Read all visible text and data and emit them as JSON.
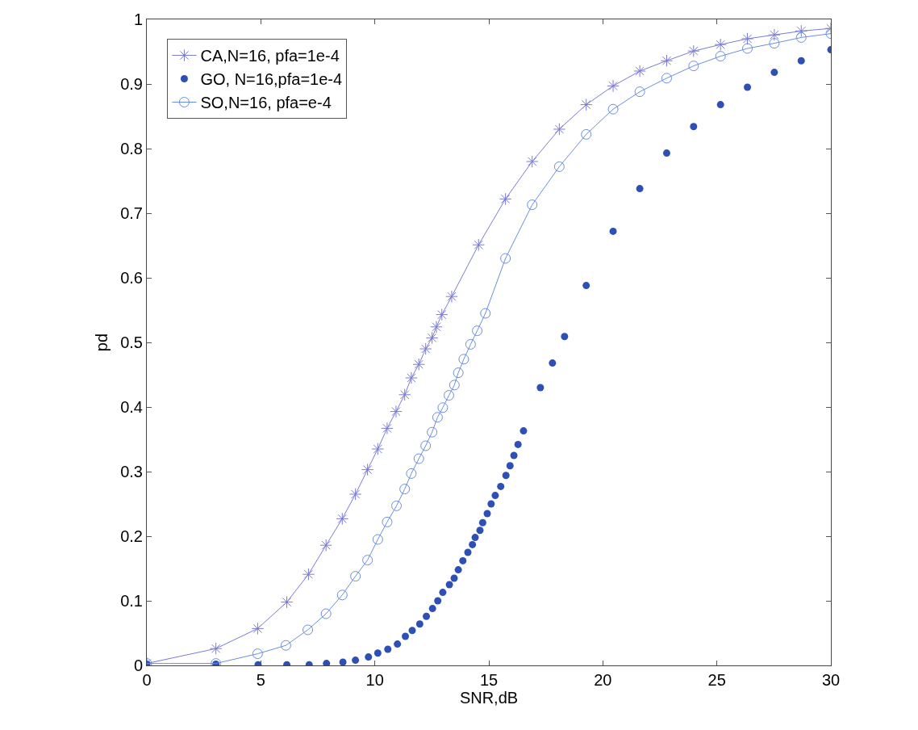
{
  "chart_data": {
    "type": "line",
    "xlabel": "SNR,dB",
    "ylabel": "pd",
    "xlim": [
      0,
      30
    ],
    "ylim": [
      0,
      1
    ],
    "xticks": [
      0,
      5,
      10,
      15,
      20,
      25,
      30
    ],
    "yticks": [
      0,
      0.1,
      0.2,
      0.3,
      0.4,
      0.5,
      0.6,
      0.7,
      0.8,
      0.9,
      1
    ],
    "grid": false,
    "legend": "top left",
    "series": [
      {
        "name": "CA,N=16, pfa=1e-4",
        "marker": "cross",
        "line_style": "solid",
        "color": "#7a7ad8",
        "x": [
          0,
          3.03,
          4.86,
          6.14,
          7.09,
          7.86,
          8.57,
          9.15,
          9.68,
          10.13,
          10.54,
          10.93,
          11.31,
          11.6,
          11.93,
          12.23,
          12.51,
          12.7,
          12.94,
          13.37,
          14.55,
          15.73,
          16.9,
          18.09,
          19.27,
          20.45,
          21.62,
          22.8,
          23.98,
          25.16,
          26.34,
          27.52,
          28.7,
          30
        ],
        "values": [
          0.003,
          0.026,
          0.057,
          0.098,
          0.141,
          0.186,
          0.227,
          0.265,
          0.303,
          0.335,
          0.367,
          0.393,
          0.419,
          0.445,
          0.466,
          0.49,
          0.507,
          0.524,
          0.543,
          0.571,
          0.651,
          0.722,
          0.78,
          0.83,
          0.868,
          0.897,
          0.92,
          0.936,
          0.951,
          0.961,
          0.97,
          0.976,
          0.982,
          0.986
        ]
      },
      {
        "name": "GO, N=16,pfa=1e-4",
        "type": "scatter",
        "marker": "circle",
        "color": "#2e4fb4",
        "x": [
          0,
          3.03,
          4.88,
          6.14,
          7.12,
          7.88,
          8.6,
          9.15,
          9.72,
          10.13,
          10.57,
          10.99,
          11.34,
          11.64,
          11.97,
          12.26,
          12.53,
          12.76,
          12.98,
          13.27,
          13.48,
          13.66,
          13.86,
          14.08,
          14.28,
          14.4,
          14.61,
          14.73,
          14.93,
          15.1,
          15.28,
          15.52,
          15.75,
          15.93,
          16.1,
          16.28,
          16.52,
          17.26,
          17.79,
          18.32,
          19.27,
          20.45,
          21.62,
          22.8,
          23.98,
          25.16,
          26.34,
          27.52,
          28.7,
          30
        ],
        "values": [
          0.002,
          0.002,
          0.001,
          0.001,
          0.001,
          0.003,
          0.005,
          0.008,
          0.013,
          0.019,
          0.025,
          0.033,
          0.045,
          0.054,
          0.064,
          0.076,
          0.088,
          0.1,
          0.113,
          0.125,
          0.135,
          0.148,
          0.162,
          0.175,
          0.187,
          0.198,
          0.209,
          0.221,
          0.235,
          0.25,
          0.263,
          0.277,
          0.294,
          0.309,
          0.325,
          0.342,
          0.363,
          0.43,
          0.468,
          0.509,
          0.588,
          0.672,
          0.738,
          0.793,
          0.834,
          0.868,
          0.895,
          0.918,
          0.936,
          0.953
        ]
      },
      {
        "name": "SO,N=16, pfa=e-4",
        "marker": "circle",
        "line_style": "solid",
        "color": "#6a8ee0",
        "x": [
          0,
          3.03,
          4.86,
          6.1,
          7.06,
          7.86,
          8.57,
          9.15,
          9.68,
          10.13,
          10.54,
          10.95,
          11.31,
          11.6,
          11.93,
          12.23,
          12.51,
          12.75,
          12.98,
          13.25,
          13.49,
          13.66,
          13.9,
          14.2,
          14.49,
          14.85,
          15.73,
          16.9,
          18.09,
          19.27,
          20.45,
          21.62,
          22.8,
          23.98,
          25.16,
          26.34,
          27.52,
          28.7,
          30
        ],
        "values": [
          0.003,
          0.003,
          0.018,
          0.031,
          0.055,
          0.08,
          0.109,
          0.138,
          0.163,
          0.195,
          0.222,
          0.247,
          0.273,
          0.297,
          0.32,
          0.34,
          0.361,
          0.384,
          0.399,
          0.418,
          0.434,
          0.453,
          0.474,
          0.497,
          0.518,
          0.545,
          0.63,
          0.713,
          0.772,
          0.822,
          0.861,
          0.888,
          0.909,
          0.928,
          0.943,
          0.955,
          0.963,
          0.972,
          0.978
        ]
      }
    ]
  }
}
